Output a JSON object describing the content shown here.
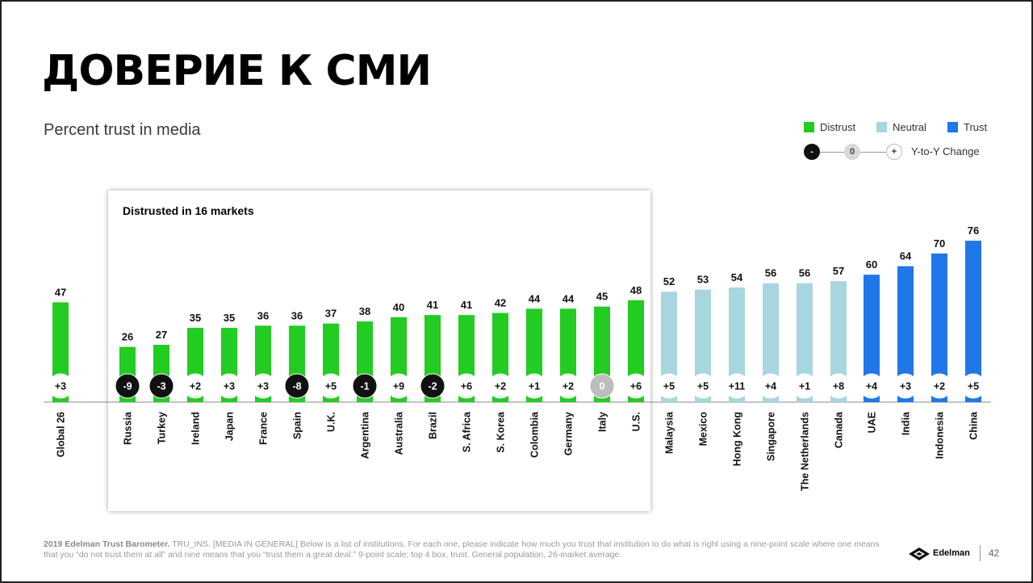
{
  "title": "ДОВЕРИЕ К СМИ",
  "subtitle": "Percent trust in media",
  "panel_title": "Distrusted in 16 markets",
  "legend": {
    "distrust": "Distrust",
    "neutral": "Neutral",
    "trust": "Trust",
    "minus_symbol": "-",
    "zero_symbol": "0",
    "plus_symbol": "+",
    "change_label": "Y-to-Y Change"
  },
  "colors": {
    "distrust": "#22cc22",
    "neutral": "#a8d6e0",
    "trust": "#1f77e8",
    "negative_change": "#111111",
    "zero_change": "#bdbdbd"
  },
  "footer": {
    "source_bold": "2019 Edelman Trust Barometer.",
    "source_text": " TRU_INS. [MEDIA IN GENERAL] Below is a list of institutions. For each one, please indicate how much you trust that institution to do what is right using a nine-point scale where one means that you “do not trust them at all” and nine means that you “trust them a great deal.” 9-point scale; top 4 box, trust. General population, 26-market average."
  },
  "brand": {
    "name": "Edelman",
    "page_number": "42"
  },
  "chart_data": {
    "type": "bar",
    "title": "",
    "ylim": [
      0,
      80
    ],
    "categories": [
      "Global 26",
      "Russia",
      "Turkey",
      "Ireland",
      "Japan",
      "France",
      "Spain",
      "U.K.",
      "Argentina",
      "Australia",
      "Brazil",
      "S. Africa",
      "S. Korea",
      "Colombia",
      "Germany",
      "Italy",
      "U.S.",
      "Malaysia",
      "Mexico",
      "Hong Kong",
      "Singapore",
      "The Netherlands",
      "Canada",
      "UAE",
      "India",
      "Indonesia",
      "China"
    ],
    "values": [
      47,
      26,
      27,
      35,
      35,
      36,
      36,
      37,
      38,
      40,
      41,
      41,
      42,
      44,
      44,
      45,
      48,
      52,
      53,
      54,
      56,
      56,
      57,
      60,
      64,
      70,
      76
    ],
    "changes": [
      "+3",
      "-9",
      "-3",
      "+2",
      "+3",
      "+3",
      "-8",
      "+5",
      "-1",
      "+9",
      "-2",
      "+6",
      "+2",
      "+1",
      "+2",
      "0",
      "+6",
      "+5",
      "+5",
      "+11",
      "+4",
      "+1",
      "+8",
      "+4",
      "+3",
      "+2",
      "+5"
    ],
    "groups": [
      "distrust",
      "distrust",
      "distrust",
      "distrust",
      "distrust",
      "distrust",
      "distrust",
      "distrust",
      "distrust",
      "distrust",
      "distrust",
      "distrust",
      "distrust",
      "distrust",
      "distrust",
      "distrust",
      "distrust",
      "neutral",
      "neutral",
      "neutral",
      "neutral",
      "neutral",
      "neutral",
      "trust",
      "trust",
      "trust",
      "trust"
    ]
  }
}
